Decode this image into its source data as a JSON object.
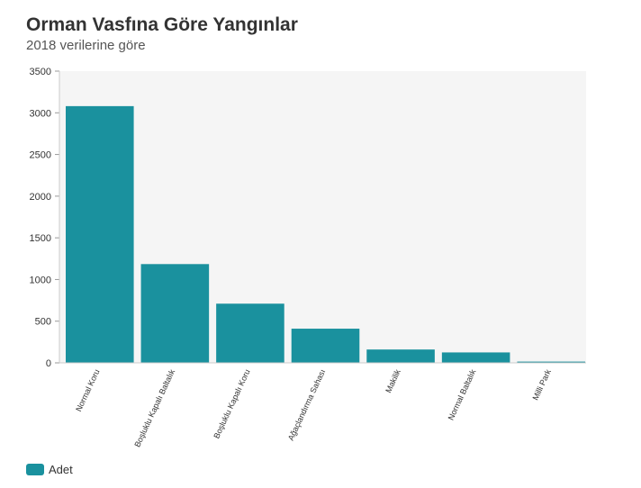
{
  "chart_data": {
    "type": "bar",
    "title": "Orman Vasfına Göre Yangınlar",
    "subtitle": "2018 verilerine göre",
    "categories": [
      "Normal Koru",
      "Boşluklu Kapalı Baltalık",
      "Boşluklu Kapalı Koru",
      "Ağaçlandırma Sahası",
      "Makilik",
      "Normal Baltalık",
      "Milli Park"
    ],
    "series": [
      {
        "name": "Adet",
        "values": [
          3080,
          1185,
          710,
          410,
          160,
          125,
          15
        ]
      }
    ],
    "ylim": [
      0,
      3500
    ],
    "yticks": [
      "0",
      "500",
      "1000",
      "1500",
      "2000",
      "2500",
      "3000",
      "3500"
    ],
    "grid": false,
    "legend": "bottom-left"
  },
  "colors": {
    "bar": "#1a919e",
    "plot_background": "#f5f5f5"
  }
}
